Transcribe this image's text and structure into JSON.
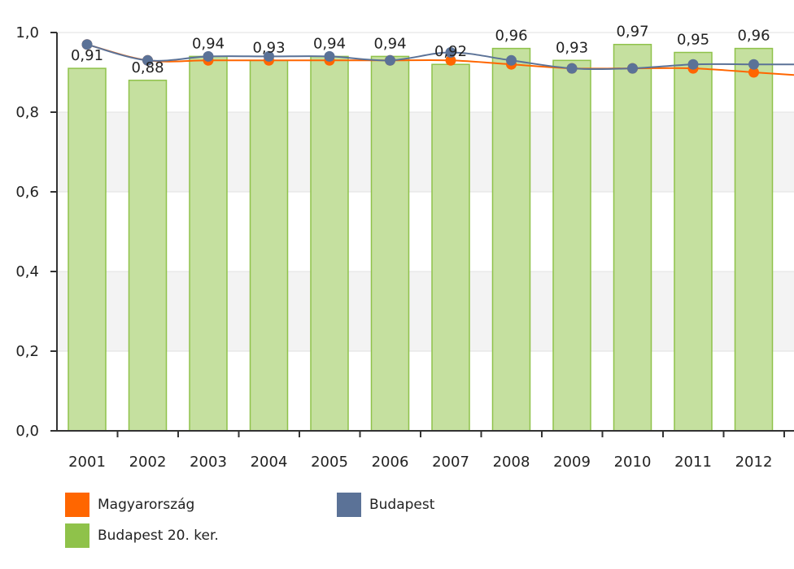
{
  "chart_data": {
    "type": "bar",
    "categories": [
      "2001",
      "2002",
      "2003",
      "2004",
      "2005",
      "2006",
      "2007",
      "2008",
      "2009",
      "2010",
      "2011",
      "2012"
    ],
    "ylim": [
      0,
      1.0
    ],
    "yticks": [
      0.0,
      0.2,
      0.4,
      0.6,
      0.8,
      1.0
    ],
    "ytick_labels": [
      "0,0",
      "0,2",
      "0,4",
      "0,6",
      "0,8",
      "1,0"
    ],
    "grid": true,
    "legend_position": "bottom",
    "series": [
      {
        "name": "Budapest 20. ker.",
        "kind": "bar",
        "color": "#8fc24a",
        "fill": "#c5e09f",
        "values": [
          0.91,
          0.88,
          0.94,
          0.93,
          0.94,
          0.94,
          0.92,
          0.96,
          0.93,
          0.97,
          0.95,
          0.96
        ],
        "labels": [
          "0,91",
          "0,88",
          "0,94",
          "0,93",
          "0,94",
          "0,94",
          "0,92",
          "0,96",
          "0,93",
          "0,97",
          "0,95",
          "0,96"
        ]
      },
      {
        "name": "Magyarország",
        "kind": "line",
        "color": "#ff6600",
        "values": [
          0.97,
          0.93,
          0.93,
          0.93,
          0.93,
          0.93,
          0.93,
          0.92,
          0.91,
          0.91,
          0.91,
          0.9
        ]
      },
      {
        "name": "Budapest",
        "kind": "line",
        "color": "#5b7297",
        "values": [
          0.97,
          0.93,
          0.94,
          0.94,
          0.94,
          0.93,
          0.95,
          0.93,
          0.91,
          0.91,
          0.92,
          0.92
        ]
      }
    ]
  },
  "legend": {
    "items": [
      {
        "label": "Magyarország",
        "color": "#ff6600"
      },
      {
        "label": "Budapest",
        "color": "#5b7297"
      },
      {
        "label": "Budapest 20. ker.",
        "color": "#8fc24a"
      }
    ]
  }
}
